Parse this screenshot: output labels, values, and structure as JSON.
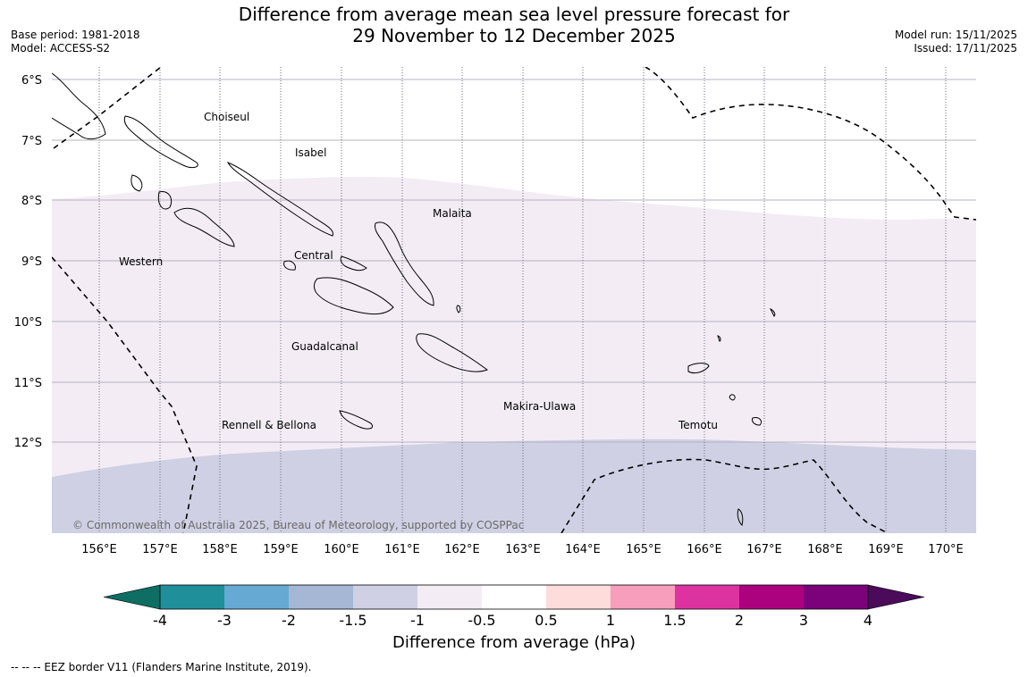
{
  "header": {
    "title_line1": "Difference from average mean sea level pressure forecast for",
    "title_line2": "29 November to 12 December 2025",
    "base_period": "Base period: 1981-2018",
    "model": "Model: ACCESS-S2",
    "model_run": "Model run: 15/11/2025",
    "issued": "Issued: 17/11/2025"
  },
  "map": {
    "lat_labels": [
      "6°S",
      "7°S",
      "8°S",
      "9°S",
      "10°S",
      "11°S",
      "12°S"
    ],
    "lon_labels": [
      "156°E",
      "157°E",
      "158°E",
      "159°E",
      "160°E",
      "161°E",
      "162°E",
      "163°E",
      "164°E",
      "165°E",
      "166°E",
      "167°E",
      "168°E",
      "169°E",
      "170°E"
    ],
    "provinces": {
      "choiseul": "Choiseul",
      "isabel": "Isabel",
      "malaita": "Malaita",
      "western": "Western",
      "central": "Central",
      "guadalcanal": "Guadalcanal",
      "makira_ulawa": "Makira-Ulawa",
      "rennell_bellona": "Rennell & Bellona",
      "temotu": "Temotu"
    },
    "copyright": "© Commonwealth of Australia 2025, Bureau of Meteorology, supported by COSPPac",
    "regions": [
      {
        "category": "-1 to -0.5",
        "color": "#f3ecf5"
      },
      {
        "category": "-1.5 to -1",
        "color": "#cfd0e3"
      }
    ]
  },
  "colorbar": {
    "title": "Difference from average (hPa)",
    "labels": [
      "-4",
      "-3",
      "-2",
      "-1.5",
      "-1",
      "-0.5",
      "0.5",
      "1",
      "1.5",
      "2",
      "3",
      "4"
    ],
    "colors": [
      "#0e6e64",
      "#1f8f9a",
      "#66a9d2",
      "#a6b6d5",
      "#cfd0e3",
      "#f3ecf5",
      "#ffffff",
      "#fedcdc",
      "#f79ebc",
      "#dd33a0",
      "#ad027f",
      "#7b027a",
      "#4b0a5a"
    ]
  },
  "legend": {
    "eez": "--  --  -- EEZ border V11 (Flanders Marine Institute, 2019)."
  }
}
